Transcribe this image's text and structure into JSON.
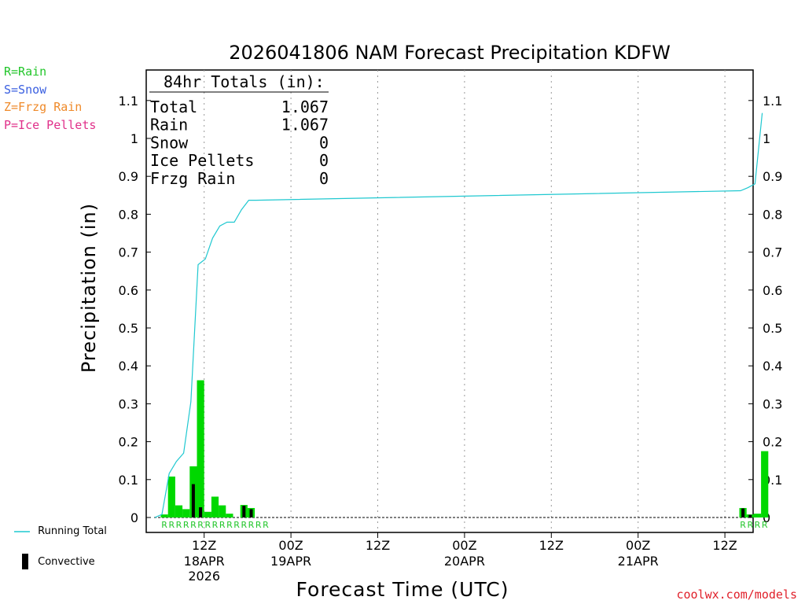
{
  "chart_data": {
    "type": "bar",
    "title": "2026041806 NAM Forecast Precipitation KDFW",
    "xlabel": "Forecast Time (UTC)",
    "ylabel": "Precipitation (in)",
    "ylim": [
      0,
      1.18
    ],
    "y_ticks": [
      "0",
      "0.1",
      "0.2",
      "0.3",
      "0.4",
      "0.5",
      "0.6",
      "0.7",
      "0.8",
      "0.9",
      "1",
      "1.1"
    ],
    "x_ticks": [
      {
        "hour": 6,
        "label1": "12Z",
        "label2": "18APR",
        "label3": "2026"
      },
      {
        "hour": 18,
        "label1": "00Z",
        "label2": "19APR",
        "label3": ""
      },
      {
        "hour": 30,
        "label1": "12Z",
        "label2": "",
        "label3": ""
      },
      {
        "hour": 42,
        "label1": "00Z",
        "label2": "20APR",
        "label3": ""
      },
      {
        "hour": 54,
        "label1": "12Z",
        "label2": "",
        "label3": ""
      },
      {
        "hour": 66,
        "label1": "00Z",
        "label2": "21APR",
        "label3": ""
      },
      {
        "hour": 78,
        "label1": "12Z",
        "label2": "",
        "label3": ""
      }
    ],
    "forecast_hours": [
      1,
      2,
      3,
      4,
      5,
      6,
      7,
      8,
      9,
      10,
      11,
      12,
      13,
      14,
      15,
      81,
      82,
      83,
      84
    ],
    "series": [
      {
        "name": "Rain",
        "values": [
          0.008,
          0.108,
          0.032,
          0.022,
          0.135,
          0.362,
          0.015,
          0.055,
          0.032,
          0.01,
          0.0,
          0.033,
          0.025,
          0.0,
          0.0,
          0.025,
          0.008,
          0.01,
          0.175
        ]
      },
      {
        "name": "Convective",
        "values": [
          0.0,
          0.0,
          0.0,
          0.0,
          0.088,
          0.027,
          0.0,
          0.0,
          0.0,
          0.0,
          0.0,
          0.031,
          0.022,
          0.0,
          0.0,
          0.024,
          0.007,
          0.0,
          0.0
        ]
      }
    ],
    "running_total": {
      "hours": [
        0,
        1,
        2,
        3,
        4,
        5,
        6,
        7,
        8,
        9,
        10,
        11,
        12,
        13,
        14,
        81,
        82,
        83,
        84
      ],
      "values": [
        0.0,
        0.008,
        0.116,
        0.148,
        0.17,
        0.305,
        0.667,
        0.682,
        0.737,
        0.769,
        0.779,
        0.779,
        0.812,
        0.837,
        0.837,
        0.862,
        0.87,
        0.88,
        1.067
      ]
    },
    "ptype_markers": {
      "hours": [
        1,
        2,
        3,
        4,
        5,
        6,
        7,
        8,
        9,
        10,
        11,
        12,
        13,
        14,
        15,
        81,
        82,
        83,
        84
      ],
      "labels": [
        "R",
        "R",
        "R",
        "R",
        "R",
        "R",
        "R",
        "R",
        "R",
        "R",
        "R",
        "R",
        "R",
        "R",
        "R",
        "R",
        "R",
        "R",
        "R"
      ]
    },
    "totals": {
      "heading": "84hr Totals (in):",
      "rows": [
        {
          "label": "Total",
          "value": "1.067"
        },
        {
          "label": "Rain",
          "value": "1.067"
        },
        {
          "label": "Snow",
          "value": "0"
        },
        {
          "label": "Ice Pellets",
          "value": "0"
        },
        {
          "label": "Frzg Rain",
          "value": "0"
        }
      ]
    },
    "ptype_legend": [
      {
        "label": "R=Rain",
        "color": "#22c62a"
      },
      {
        "label": "S=Snow",
        "color": "#3a5fe0"
      },
      {
        "label": "Z=Frzg Rain",
        "color": "#ef8a2a"
      },
      {
        "label": "P=Ice Pellets",
        "color": "#e0308a"
      }
    ],
    "legend": {
      "running_total": "Running Total",
      "convective": "Convective"
    },
    "colors": {
      "rain": "#00d800",
      "convective": "#000000",
      "running_total": "#1fc8d0",
      "marker": "#22c62a"
    }
  },
  "credit": "coolwx.com/models"
}
